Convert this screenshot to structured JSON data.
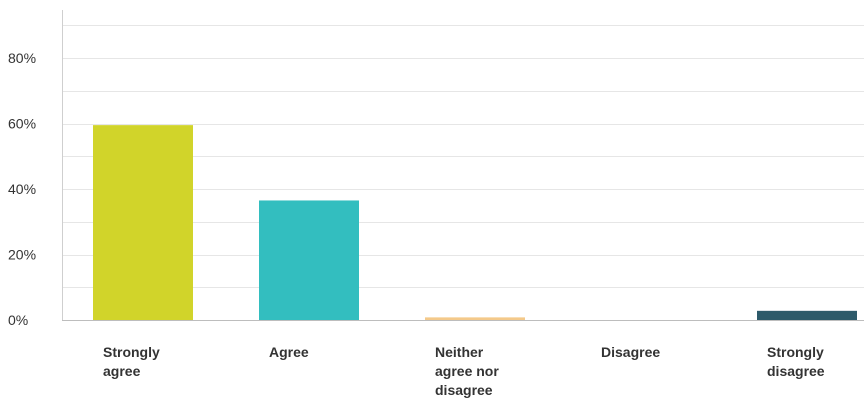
{
  "chart_data": {
    "type": "bar",
    "title": "",
    "xlabel": "",
    "ylabel": "",
    "categories": [
      [
        "Strongly",
        "agree"
      ],
      [
        "Agree"
      ],
      [
        "Neither",
        "agree nor",
        "disagree"
      ],
      [
        "Disagree"
      ],
      [
        "Strongly",
        "disagree"
      ]
    ],
    "series": [
      {
        "values": [
          59.5,
          36.5,
          0.8,
          0.0,
          2.8
        ]
      }
    ],
    "bar_colors": [
      "#D1D42A",
      "#33BEBF",
      "#F4C98A",
      "#8C8C8C",
      "#2D5A6A"
    ],
    "ylim": [
      0,
      95
    ],
    "yticks": [
      0,
      20,
      40,
      60,
      80
    ],
    "ytick_labels": [
      "0%",
      "20%",
      "40%",
      "60%",
      "80%"
    ],
    "grid": true,
    "grid_color": "#e6e6e6",
    "legend": "none"
  }
}
